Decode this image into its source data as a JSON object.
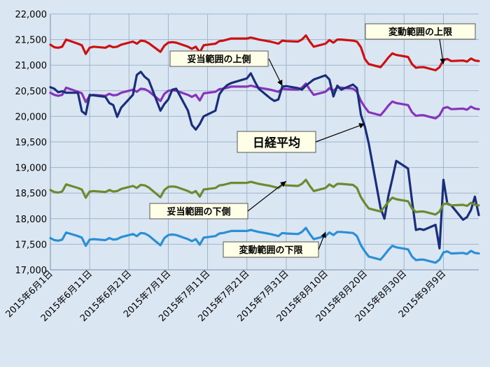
{
  "chart_data": {
    "type": "line",
    "title": "",
    "xlabel": "",
    "ylabel": "",
    "ylim": [
      17000,
      22000
    ],
    "ytick_labels": [
      "17,000",
      "17,500",
      "18,000",
      "18,500",
      "19,000",
      "19,500",
      "20,000",
      "20,500",
      "21,000",
      "21,500",
      "22,000"
    ],
    "ytick_values": [
      17000,
      17500,
      18000,
      18500,
      19000,
      19500,
      20000,
      20500,
      21000,
      21500,
      22000
    ],
    "xtick_labels": [
      "2015年6月1日",
      "2015年6月11日",
      "2015年6月21日",
      "2015年7月1日",
      "2015年7月11日",
      "2015年7月21日",
      "2015年7月31日",
      "2015年8月10日",
      "2015年8月20日",
      "2015年8月30日",
      "2015年9月9日"
    ],
    "x_start": "2015-06-01",
    "x_end": "2015-09-18",
    "grid": true,
    "series": [
      {
        "name": "変動範囲の上限",
        "color": "#cc1111",
        "x": [
          "2015-06-01",
          "2015-06-02",
          "2015-06-03",
          "2015-06-04",
          "2015-06-05",
          "2015-06-08",
          "2015-06-09",
          "2015-06-10",
          "2015-06-11",
          "2015-06-12",
          "2015-06-15",
          "2015-06-16",
          "2015-06-17",
          "2015-06-18",
          "2015-06-19",
          "2015-06-22",
          "2015-06-23",
          "2015-06-24",
          "2015-06-25",
          "2015-06-26",
          "2015-06-29",
          "2015-06-30",
          "2015-07-01",
          "2015-07-02",
          "2015-07-03",
          "2015-07-06",
          "2015-07-07",
          "2015-07-08",
          "2015-07-09",
          "2015-07-10",
          "2015-07-13",
          "2015-07-14",
          "2015-07-15",
          "2015-07-16",
          "2015-07-17",
          "2015-07-21",
          "2015-07-22",
          "2015-07-23",
          "2015-07-24",
          "2015-07-27",
          "2015-07-28",
          "2015-07-29",
          "2015-07-30",
          "2015-07-31",
          "2015-08-03",
          "2015-08-04",
          "2015-08-05",
          "2015-08-06",
          "2015-08-07",
          "2015-08-10",
          "2015-08-11",
          "2015-08-12",
          "2015-08-13",
          "2015-08-14",
          "2015-08-17",
          "2015-08-18",
          "2015-08-19",
          "2015-08-20",
          "2015-08-21",
          "2015-08-24",
          "2015-08-25",
          "2015-08-26",
          "2015-08-27",
          "2015-08-28",
          "2015-08-31",
          "2015-09-01",
          "2015-09-02",
          "2015-09-03",
          "2015-09-04",
          "2015-09-07",
          "2015-09-08",
          "2015-09-09",
          "2015-09-10",
          "2015-09-11",
          "2015-09-14",
          "2015-09-15",
          "2015-09-16",
          "2015-09-17",
          "2015-09-18"
        ],
        "values": [
          21400,
          21350,
          21340,
          21360,
          21500,
          21420,
          21390,
          21220,
          21340,
          21360,
          21340,
          21380,
          21350,
          21360,
          21400,
          21460,
          21420,
          21480,
          21470,
          21430,
          21260,
          21380,
          21440,
          21450,
          21440,
          21360,
          21320,
          21360,
          21250,
          21390,
          21420,
          21470,
          21480,
          21500,
          21520,
          21520,
          21540,
          21520,
          21500,
          21460,
          21440,
          21420,
          21480,
          21470,
          21460,
          21500,
          21580,
          21460,
          21360,
          21420,
          21490,
          21440,
          21500,
          21500,
          21480,
          21460,
          21350,
          21120,
          21020,
          20960,
          21050,
          21150,
          21230,
          21200,
          21160,
          21020,
          20950,
          20960,
          20960,
          20900,
          20960,
          21100,
          21120,
          21080,
          21090,
          21070,
          21130,
          21090,
          21080
        ]
      },
      {
        "name": "妥当範囲の上側",
        "color": "#8833bb",
        "x": [
          "2015-06-01",
          "2015-06-02",
          "2015-06-03",
          "2015-06-04",
          "2015-06-05",
          "2015-06-08",
          "2015-06-09",
          "2015-06-10",
          "2015-06-11",
          "2015-06-12",
          "2015-06-15",
          "2015-06-16",
          "2015-06-17",
          "2015-06-18",
          "2015-06-19",
          "2015-06-22",
          "2015-06-23",
          "2015-06-24",
          "2015-06-25",
          "2015-06-26",
          "2015-06-29",
          "2015-06-30",
          "2015-07-01",
          "2015-07-02",
          "2015-07-03",
          "2015-07-06",
          "2015-07-07",
          "2015-07-08",
          "2015-07-09",
          "2015-07-10",
          "2015-07-13",
          "2015-07-14",
          "2015-07-15",
          "2015-07-16",
          "2015-07-17",
          "2015-07-21",
          "2015-07-22",
          "2015-07-23",
          "2015-07-24",
          "2015-07-27",
          "2015-07-28",
          "2015-07-29",
          "2015-07-30",
          "2015-07-31",
          "2015-08-03",
          "2015-08-04",
          "2015-08-05",
          "2015-08-06",
          "2015-08-07",
          "2015-08-10",
          "2015-08-11",
          "2015-08-12",
          "2015-08-13",
          "2015-08-14",
          "2015-08-17",
          "2015-08-18",
          "2015-08-19",
          "2015-08-20",
          "2015-08-21",
          "2015-08-24",
          "2015-08-25",
          "2015-08-26",
          "2015-08-27",
          "2015-08-28",
          "2015-08-31",
          "2015-09-01",
          "2015-09-02",
          "2015-09-03",
          "2015-09-04",
          "2015-09-07",
          "2015-09-08",
          "2015-09-09",
          "2015-09-10",
          "2015-09-11",
          "2015-09-14",
          "2015-09-15",
          "2015-09-16",
          "2015-09-17",
          "2015-09-18"
        ],
        "values": [
          20460,
          20420,
          20400,
          20420,
          20560,
          20480,
          20450,
          20280,
          20400,
          20420,
          20400,
          20440,
          20410,
          20420,
          20460,
          20520,
          20480,
          20540,
          20530,
          20490,
          20300,
          20440,
          20500,
          20510,
          20500,
          20420,
          20380,
          20420,
          20310,
          20450,
          20480,
          20530,
          20540,
          20560,
          20580,
          20580,
          20600,
          20580,
          20560,
          20520,
          20500,
          20480,
          20540,
          20530,
          20520,
          20560,
          20640,
          20520,
          20420,
          20480,
          20550,
          20500,
          20560,
          20560,
          20540,
          20480,
          20300,
          20180,
          20080,
          20020,
          20110,
          20210,
          20290,
          20260,
          20220,
          20080,
          20010,
          20020,
          20020,
          19960,
          20020,
          20160,
          20180,
          20140,
          20150,
          20130,
          20190,
          20150,
          20140
        ]
      },
      {
        "name": "日経平均",
        "color": "#1a2e7a",
        "x": [
          "2015-06-01",
          "2015-06-02",
          "2015-06-03",
          "2015-06-04",
          "2015-06-05",
          "2015-06-08",
          "2015-06-09",
          "2015-06-10",
          "2015-06-11",
          "2015-06-12",
          "2015-06-15",
          "2015-06-16",
          "2015-06-17",
          "2015-06-18",
          "2015-06-19",
          "2015-06-22",
          "2015-06-23",
          "2015-06-24",
          "2015-06-25",
          "2015-06-26",
          "2015-06-29",
          "2015-06-30",
          "2015-07-01",
          "2015-07-02",
          "2015-07-03",
          "2015-07-06",
          "2015-07-07",
          "2015-07-08",
          "2015-07-09",
          "2015-07-10",
          "2015-07-13",
          "2015-07-14",
          "2015-07-15",
          "2015-07-16",
          "2015-07-17",
          "2015-07-21",
          "2015-07-22",
          "2015-07-23",
          "2015-07-24",
          "2015-07-27",
          "2015-07-28",
          "2015-07-29",
          "2015-07-30",
          "2015-07-31",
          "2015-08-03",
          "2015-08-04",
          "2015-08-05",
          "2015-08-06",
          "2015-08-07",
          "2015-08-10",
          "2015-08-11",
          "2015-08-12",
          "2015-08-13",
          "2015-08-14",
          "2015-08-17",
          "2015-08-18",
          "2015-08-19",
          "2015-08-20",
          "2015-08-21",
          "2015-08-24",
          "2015-08-25",
          "2015-08-26",
          "2015-08-27",
          "2015-08-28",
          "2015-08-31",
          "2015-09-01",
          "2015-09-02",
          "2015-09-03",
          "2015-09-04",
          "2015-09-07",
          "2015-09-08",
          "2015-09-09",
          "2015-09-10",
          "2015-09-11",
          "2015-09-14",
          "2015-09-15",
          "2015-09-16",
          "2015-09-17",
          "2015-09-18"
        ],
        "values": [
          20570,
          20540,
          20470,
          20490,
          20460,
          20460,
          20100,
          20040,
          20420,
          20410,
          20380,
          20260,
          20220,
          19990,
          20170,
          20420,
          20810,
          20870,
          20770,
          20710,
          20110,
          20240,
          20330,
          20520,
          20540,
          20110,
          19830,
          19740,
          19850,
          20000,
          20110,
          20430,
          20540,
          20610,
          20650,
          20740,
          20840,
          20680,
          20540,
          20350,
          20300,
          20330,
          20580,
          20590,
          20550,
          20520,
          20600,
          20660,
          20720,
          20800,
          20720,
          20390,
          20600,
          20520,
          20620,
          20550,
          20030,
          19800,
          19470,
          18210,
          18000,
          18450,
          18780,
          19130,
          18980,
          18350,
          17780,
          17800,
          17780,
          17880,
          17420,
          18760,
          18290,
          18260,
          17980,
          18030,
          18170,
          18430,
          18070
        ]
      },
      {
        "name": "妥当範囲の下側",
        "color": "#6e8a2e",
        "x": [
          "2015-06-01",
          "2015-06-02",
          "2015-06-03",
          "2015-06-04",
          "2015-06-05",
          "2015-06-08",
          "2015-06-09",
          "2015-06-10",
          "2015-06-11",
          "2015-06-12",
          "2015-06-15",
          "2015-06-16",
          "2015-06-17",
          "2015-06-18",
          "2015-06-19",
          "2015-06-22",
          "2015-06-23",
          "2015-06-24",
          "2015-06-25",
          "2015-06-26",
          "2015-06-29",
          "2015-06-30",
          "2015-07-01",
          "2015-07-02",
          "2015-07-03",
          "2015-07-06",
          "2015-07-07",
          "2015-07-08",
          "2015-07-09",
          "2015-07-10",
          "2015-07-13",
          "2015-07-14",
          "2015-07-15",
          "2015-07-16",
          "2015-07-17",
          "2015-07-21",
          "2015-07-22",
          "2015-07-23",
          "2015-07-24",
          "2015-07-27",
          "2015-07-28",
          "2015-07-29",
          "2015-07-30",
          "2015-07-31",
          "2015-08-03",
          "2015-08-04",
          "2015-08-05",
          "2015-08-06",
          "2015-08-07",
          "2015-08-10",
          "2015-08-11",
          "2015-08-12",
          "2015-08-13",
          "2015-08-14",
          "2015-08-17",
          "2015-08-18",
          "2015-08-19",
          "2015-08-20",
          "2015-08-21",
          "2015-08-24",
          "2015-08-25",
          "2015-08-26",
          "2015-08-27",
          "2015-08-28",
          "2015-08-31",
          "2015-09-01",
          "2015-09-02",
          "2015-09-03",
          "2015-09-04",
          "2015-09-07",
          "2015-09-08",
          "2015-09-09",
          "2015-09-10",
          "2015-09-11",
          "2015-09-14",
          "2015-09-15",
          "2015-09-16",
          "2015-09-17",
          "2015-09-18"
        ],
        "values": [
          18560,
          18520,
          18510,
          18530,
          18670,
          18600,
          18570,
          18410,
          18530,
          18540,
          18520,
          18560,
          18530,
          18540,
          18580,
          18640,
          18600,
          18660,
          18650,
          18610,
          18420,
          18560,
          18620,
          18630,
          18620,
          18540,
          18500,
          18540,
          18430,
          18570,
          18600,
          18650,
          18660,
          18680,
          18700,
          18700,
          18720,
          18700,
          18680,
          18640,
          18620,
          18600,
          18660,
          18650,
          18640,
          18680,
          18760,
          18640,
          18540,
          18600,
          18670,
          18620,
          18680,
          18680,
          18660,
          18600,
          18420,
          18300,
          18200,
          18140,
          18230,
          18330,
          18410,
          18380,
          18340,
          18200,
          18130,
          18140,
          18140,
          18080,
          18140,
          18280,
          18300,
          18260,
          18270,
          18250,
          18310,
          18270,
          18260
        ]
      },
      {
        "name": "変動範囲の下限",
        "color": "#2b8fd6",
        "x": [
          "2015-06-01",
          "2015-06-02",
          "2015-06-03",
          "2015-06-04",
          "2015-06-05",
          "2015-06-08",
          "2015-06-09",
          "2015-06-10",
          "2015-06-11",
          "2015-06-12",
          "2015-06-15",
          "2015-06-16",
          "2015-06-17",
          "2015-06-18",
          "2015-06-19",
          "2015-06-22",
          "2015-06-23",
          "2015-06-24",
          "2015-06-25",
          "2015-06-26",
          "2015-06-29",
          "2015-06-30",
          "2015-07-01",
          "2015-07-02",
          "2015-07-03",
          "2015-07-06",
          "2015-07-07",
          "2015-07-08",
          "2015-07-09",
          "2015-07-10",
          "2015-07-13",
          "2015-07-14",
          "2015-07-15",
          "2015-07-16",
          "2015-07-17",
          "2015-07-21",
          "2015-07-22",
          "2015-07-23",
          "2015-07-24",
          "2015-07-27",
          "2015-07-28",
          "2015-07-29",
          "2015-07-30",
          "2015-07-31",
          "2015-08-03",
          "2015-08-04",
          "2015-08-05",
          "2015-08-06",
          "2015-08-07",
          "2015-08-10",
          "2015-08-11",
          "2015-08-12",
          "2015-08-13",
          "2015-08-14",
          "2015-08-17",
          "2015-08-18",
          "2015-08-19",
          "2015-08-20",
          "2015-08-21",
          "2015-08-24",
          "2015-08-25",
          "2015-08-26",
          "2015-08-27",
          "2015-08-28",
          "2015-08-31",
          "2015-09-01",
          "2015-09-02",
          "2015-09-03",
          "2015-09-04",
          "2015-09-07",
          "2015-09-08",
          "2015-09-09",
          "2015-09-10",
          "2015-09-11",
          "2015-09-14",
          "2015-09-15",
          "2015-09-16",
          "2015-09-17",
          "2015-09-18"
        ],
        "values": [
          17620,
          17580,
          17570,
          17590,
          17730,
          17660,
          17630,
          17470,
          17590,
          17600,
          17580,
          17620,
          17590,
          17600,
          17640,
          17700,
          17660,
          17720,
          17710,
          17670,
          17480,
          17620,
          17680,
          17690,
          17680,
          17600,
          17560,
          17600,
          17490,
          17630,
          17660,
          17710,
          17720,
          17740,
          17760,
          17760,
          17780,
          17760,
          17740,
          17700,
          17680,
          17660,
          17720,
          17710,
          17700,
          17740,
          17820,
          17700,
          17600,
          17660,
          17730,
          17680,
          17740,
          17740,
          17720,
          17660,
          17480,
          17360,
          17260,
          17200,
          17290,
          17390,
          17470,
          17440,
          17400,
          17260,
          17190,
          17200,
          17200,
          17140,
          17200,
          17340,
          17360,
          17320,
          17330,
          17310,
          17370,
          17330,
          17320
        ]
      }
    ],
    "annotations": [
      {
        "text": "変動範囲の上限",
        "color": "#000000",
        "big": false
      },
      {
        "text": "妥当範囲の上側",
        "color": "#000000",
        "big": false
      },
      {
        "text": "日経平均",
        "color": "#000000",
        "big": true
      },
      {
        "text": "妥当範囲の下側",
        "color": "#000000",
        "big": false
      },
      {
        "text": "変動範囲の下限",
        "color": "#000000",
        "big": false
      }
    ]
  }
}
